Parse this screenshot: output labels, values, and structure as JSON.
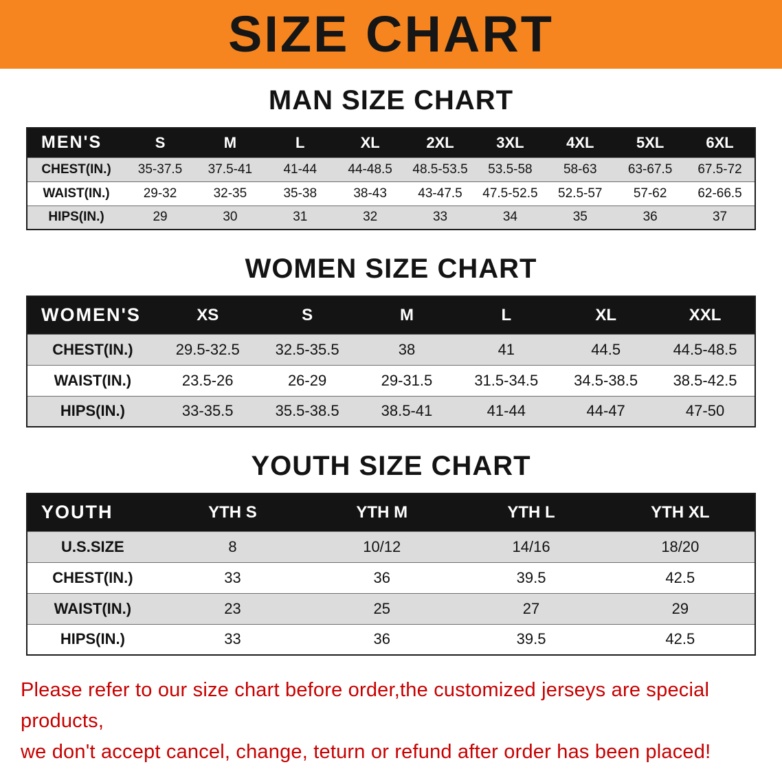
{
  "banner": {
    "title": "SIZE CHART",
    "background_color": "#f6851f",
    "text_color": "#161616"
  },
  "sections": [
    {
      "id": "men",
      "title": "MAN SIZE CHART",
      "columns": [
        "MEN'S",
        "S",
        "M",
        "L",
        "XL",
        "2XL",
        "3XL",
        "4XL",
        "5XL",
        "6XL"
      ],
      "rows": [
        [
          "CHEST(IN.)",
          "35-37.5",
          "37.5-41",
          "41-44",
          "44-48.5",
          "48.5-53.5",
          "53.5-58",
          "58-63",
          "63-67.5",
          "67.5-72"
        ],
        [
          "WAIST(IN.)",
          "29-32",
          "32-35",
          "35-38",
          "38-43",
          "43-47.5",
          "47.5-52.5",
          "52.5-57",
          "57-62",
          "62-66.5"
        ],
        [
          "HIPS(IN.)",
          "29",
          "30",
          "31",
          "32",
          "33",
          "34",
          "35",
          "36",
          "37"
        ]
      ]
    },
    {
      "id": "women",
      "title": "WOMEN SIZE CHART",
      "columns": [
        "WOMEN'S",
        "XS",
        "S",
        "M",
        "L",
        "XL",
        "XXL"
      ],
      "rows": [
        [
          "CHEST(IN.)",
          "29.5-32.5",
          "32.5-35.5",
          "38",
          "41",
          "44.5",
          "44.5-48.5"
        ],
        [
          "WAIST(IN.)",
          "23.5-26",
          "26-29",
          "29-31.5",
          "31.5-34.5",
          "34.5-38.5",
          "38.5-42.5"
        ],
        [
          "HIPS(IN.)",
          "33-35.5",
          "35.5-38.5",
          "38.5-41",
          "41-44",
          "44-47",
          "47-50"
        ]
      ]
    },
    {
      "id": "youth",
      "title": "YOUTH SIZE CHART",
      "columns": [
        "YOUTH",
        "YTH S",
        "YTH M",
        "YTH L",
        "YTH XL"
      ],
      "rows": [
        [
          "U.S.SIZE",
          "8",
          "10/12",
          "14/16",
          "18/20"
        ],
        [
          "CHEST(IN.)",
          "33",
          "36",
          "39.5",
          "42.5"
        ],
        [
          "WAIST(IN.)",
          "23",
          "25",
          "27",
          "29"
        ],
        [
          "HIPS(IN.)",
          "33",
          "36",
          "39.5",
          "42.5"
        ]
      ]
    }
  ],
  "disclaimer": {
    "line1": "Please refer to our size chart before order,the customized jerseys are special products,",
    "line2": "we don't accept cancel, change, teturn or refund after order has been placed!",
    "text_color": "#c70000"
  }
}
